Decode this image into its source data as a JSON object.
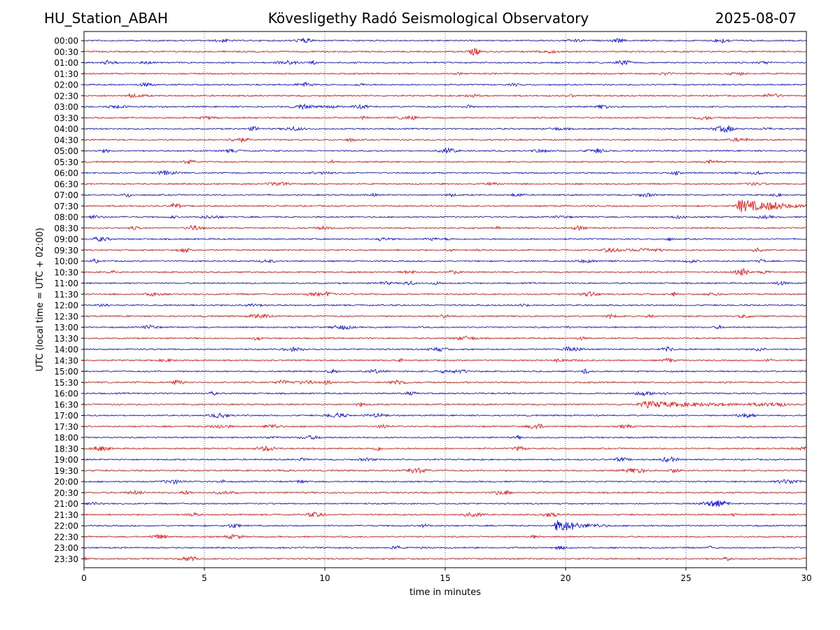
{
  "header": {
    "station": "HU_Station_ABAH",
    "title": "Kövesligethy Radó Seismological Observatory",
    "date": "2025-08-07"
  },
  "chart_data": {
    "type": "line",
    "title": "Kövesligethy Radó Seismological Observatory",
    "xlabel": "time in minutes",
    "ylabel": "UTC (local time = UTC + 02:00)",
    "xlim": [
      0,
      30
    ],
    "xticks": [
      0,
      5,
      10,
      15,
      20,
      25,
      30
    ],
    "grid": "vertical dotted lines at 5-minute intervals",
    "colors": [
      "#0000ff",
      "#ff0000"
    ],
    "rows": [
      "00:00",
      "00:30",
      "01:00",
      "01:30",
      "02:00",
      "02:30",
      "03:00",
      "03:30",
      "04:00",
      "04:30",
      "05:00",
      "05:30",
      "06:00",
      "06:30",
      "07:00",
      "07:30",
      "08:00",
      "08:30",
      "09:00",
      "09:30",
      "10:00",
      "10:30",
      "11:00",
      "11:30",
      "12:00",
      "12:30",
      "13:00",
      "13:30",
      "14:00",
      "14:30",
      "15:00",
      "15:30",
      "16:00",
      "16:30",
      "17:00",
      "17:30",
      "18:00",
      "18:30",
      "19:00",
      "19:30",
      "20:00",
      "20:30",
      "21:00",
      "21:30",
      "22:00",
      "22:30",
      "23:00",
      "23:30"
    ],
    "events": [
      {
        "row": "07:30",
        "start_min": 27.0,
        "end_min": 30.0,
        "peak_amp": 1.0
      },
      {
        "row": "22:00",
        "start_min": 19.5,
        "end_min": 21.0,
        "peak_amp": 1.0
      },
      {
        "row": "16:30",
        "start_min": 22.9,
        "end_min": 28.5,
        "peak_amp": 0.45
      },
      {
        "row": "09:30",
        "start_min": 21.5,
        "end_min": 23.5,
        "peak_amp": 0.3
      },
      {
        "row": "09:00",
        "start_min": 12.2,
        "end_min": 13.0,
        "peak_amp": 0.25
      },
      {
        "row": "08:00",
        "start_min": 0.2,
        "end_min": 1.0,
        "peak_amp": 0.3
      },
      {
        "row": "02:30",
        "start_min": 1.8,
        "end_min": 2.8,
        "peak_amp": 0.3
      },
      {
        "row": "14:30",
        "start_min": 19.5,
        "end_min": 21.0,
        "peak_amp": 0.2
      }
    ]
  }
}
